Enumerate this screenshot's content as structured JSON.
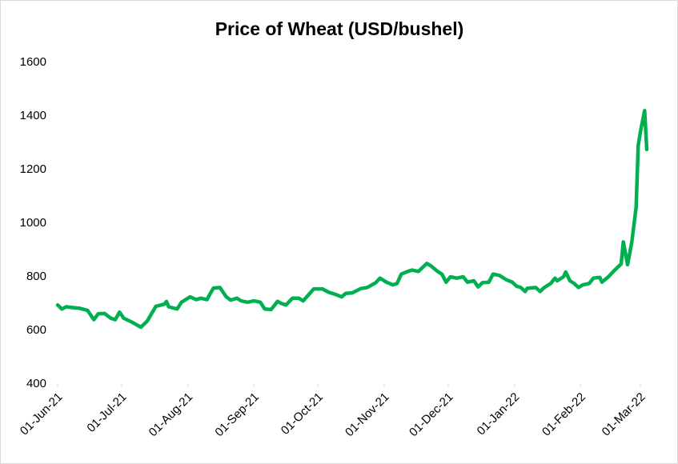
{
  "chart_data": {
    "type": "line",
    "title": "Price of Wheat (USD/bushel)",
    "x": [
      "2021-06-01",
      "2021-06-03",
      "2021-06-05",
      "2021-06-08",
      "2021-06-11",
      "2021-06-15",
      "2021-06-18",
      "2021-06-20",
      "2021-06-23",
      "2021-06-26",
      "2021-06-28",
      "2021-06-30",
      "2021-07-02",
      "2021-07-06",
      "2021-07-10",
      "2021-07-13",
      "2021-07-17",
      "2021-07-21",
      "2021-07-22",
      "2021-07-23",
      "2021-07-27",
      "2021-07-29",
      "2021-08-02",
      "2021-08-05",
      "2021-08-07",
      "2021-08-10",
      "2021-08-11",
      "2021-08-13",
      "2021-08-16",
      "2021-08-19",
      "2021-08-21",
      "2021-08-24",
      "2021-08-26",
      "2021-08-29",
      "2021-09-01",
      "2021-09-04",
      "2021-09-06",
      "2021-09-09",
      "2021-09-12",
      "2021-09-14",
      "2021-09-16",
      "2021-09-19",
      "2021-09-22",
      "2021-09-24",
      "2021-09-29",
      "2021-10-03",
      "2021-10-06",
      "2021-10-09",
      "2021-10-12",
      "2021-10-14",
      "2021-10-17",
      "2021-10-21",
      "2021-10-24",
      "2021-10-28",
      "2021-10-30",
      "2021-11-02",
      "2021-11-05",
      "2021-11-07",
      "2021-11-09",
      "2021-11-12",
      "2021-11-14",
      "2021-11-17",
      "2021-11-19",
      "2021-11-21",
      "2021-11-23",
      "2021-11-26",
      "2021-11-28",
      "2021-11-30",
      "2021-12-02",
      "2021-12-05",
      "2021-12-08",
      "2021-12-10",
      "2021-12-13",
      "2021-12-15",
      "2021-12-17",
      "2021-12-20",
      "2021-12-22",
      "2021-12-25",
      "2021-12-28",
      "2021-12-31",
      "2022-01-02",
      "2022-01-04",
      "2022-01-06",
      "2022-01-07",
      "2022-01-11",
      "2022-01-13",
      "2022-01-15",
      "2022-01-18",
      "2022-01-20",
      "2022-01-21",
      "2022-01-24",
      "2022-01-25",
      "2022-01-27",
      "2022-01-29",
      "2022-01-31",
      "2022-02-02",
      "2022-02-05",
      "2022-02-07",
      "2022-02-10",
      "2022-02-11",
      "2022-02-14",
      "2022-02-17",
      "2022-02-20",
      "2022-02-21",
      "2022-02-23",
      "2022-02-25",
      "2022-02-27",
      "2022-02-28",
      "2022-03-01",
      "2022-03-03",
      "2022-03-04"
    ],
    "series": [
      {
        "name": "Wheat",
        "color": "#00b050",
        "values": [
          695,
          680,
          688,
          685,
          683,
          675,
          640,
          662,
          663,
          645,
          640,
          668,
          645,
          630,
          612,
          635,
          690,
          698,
          708,
          688,
          680,
          705,
          725,
          715,
          720,
          715,
          730,
          758,
          760,
          725,
          713,
          720,
          710,
          705,
          710,
          705,
          680,
          678,
          708,
          700,
          695,
          720,
          720,
          710,
          755,
          755,
          742,
          735,
          725,
          738,
          740,
          756,
          760,
          778,
          795,
          780,
          770,
          775,
          810,
          820,
          825,
          820,
          835,
          850,
          840,
          820,
          810,
          780,
          800,
          795,
          800,
          780,
          785,
          762,
          778,
          780,
          810,
          805,
          790,
          780,
          765,
          760,
          745,
          757,
          760,
          745,
          760,
          775,
          795,
          785,
          800,
          818,
          785,
          775,
          760,
          770,
          775,
          795,
          798,
          780,
          800,
          825,
          848,
          930,
          845,
          930,
          1060,
          1290,
          1340,
          1420,
          1275
        ]
      }
    ],
    "xlim": [
      "2021-06-01",
      "2022-03-04"
    ],
    "xticks": [
      {
        "value": "2021-06-01",
        "label": "01-Jun-21"
      },
      {
        "value": "2021-07-01",
        "label": "01-Jul-21"
      },
      {
        "value": "2021-08-01",
        "label": "01-Aug-21"
      },
      {
        "value": "2021-09-01",
        "label": "01-Sep-21"
      },
      {
        "value": "2021-10-01",
        "label": "01-Oct-21"
      },
      {
        "value": "2021-11-01",
        "label": "01-Nov-21"
      },
      {
        "value": "2021-12-01",
        "label": "01-Dec-21"
      },
      {
        "value": "2022-01-01",
        "label": "01-Jan-22"
      },
      {
        "value": "2022-02-01",
        "label": "01-Feb-22"
      },
      {
        "value": "2022-03-01",
        "label": "01-Mar-22"
      }
    ],
    "ylim": [
      400,
      1600
    ],
    "yticks": [
      400,
      600,
      800,
      1000,
      1200,
      1400,
      1600
    ],
    "grid": false
  }
}
